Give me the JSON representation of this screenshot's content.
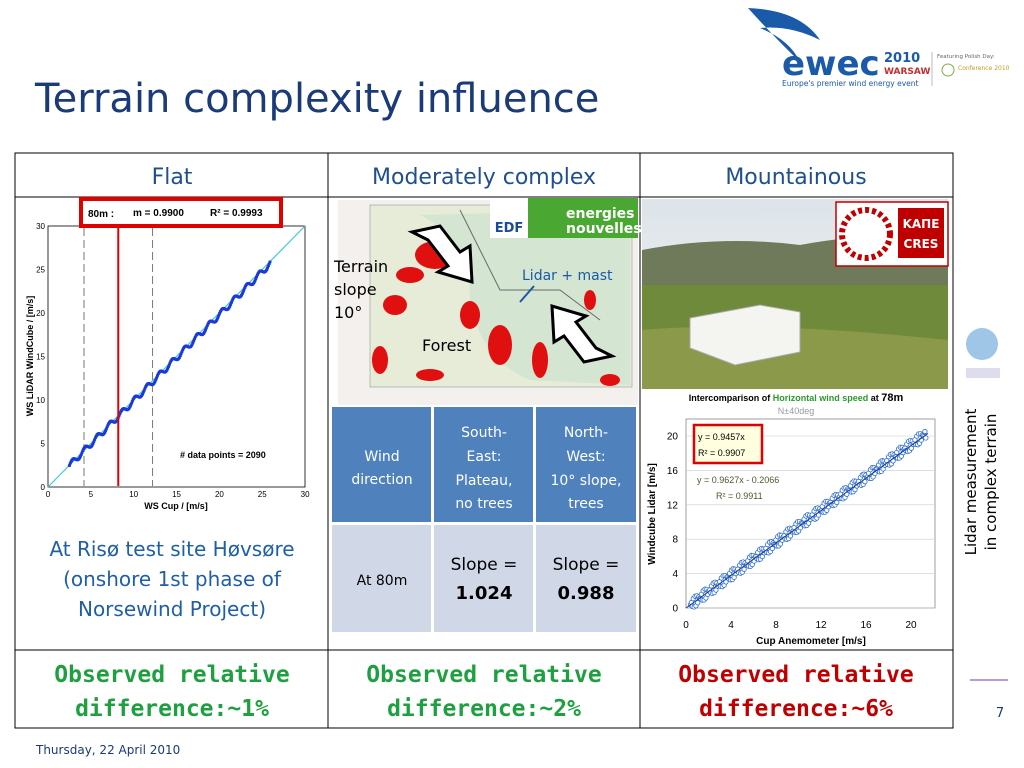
{
  "header": {
    "title": "Terrain complexity influence",
    "logo": {
      "name": "ewec",
      "year": "2010",
      "city": "WARSAW",
      "tagline": "Europe's premier wind energy event",
      "featuring": "Featuring Polish Day:",
      "conference": "Conference 2010"
    }
  },
  "table": {
    "headers": [
      "Flat",
      "Moderately complex",
      "Mountainous"
    ],
    "flat": {
      "stats": [
        "80m :",
        "m = 0.9900",
        "R² = 0.9993"
      ],
      "y_label": "WS LiDAR WindCube / [m/s]",
      "x_label": "WS Cup / [m/s]",
      "points_note": "# data points = 2090",
      "xticks": [
        0,
        5,
        10,
        15,
        20,
        25,
        30
      ],
      "yticks": [
        0,
        5,
        10,
        15,
        20,
        25,
        30
      ],
      "caption": [
        "At Risø test site Høvsøre",
        "(onshore 1st phase of",
        "Norsewind Project)"
      ]
    },
    "moderate": {
      "logos": [
        "EDF",
        "energies",
        "nouvelles"
      ],
      "annotations": {
        "slope": [
          "Terrain",
          "slope",
          "10°"
        ],
        "lidar": "Lidar + mast",
        "forest": "Forest"
      },
      "inner_table": {
        "header": [
          [
            "Wind",
            "direction"
          ],
          [
            "South-",
            "East:",
            "Plateau,",
            "no trees"
          ],
          [
            "North-",
            "West:",
            "10° slope,",
            "trees"
          ]
        ],
        "row": [
          "At 80m",
          [
            "Slope =",
            "1.024"
          ],
          [
            "Slope =",
            "0.988"
          ]
        ]
      }
    },
    "mountainous": {
      "logo": [
        "ΚΑΠΕ",
        "CRES"
      ],
      "chart_title": [
        "Intercomparison of ",
        "Horizontal wind speed",
        " at ",
        "78m"
      ],
      "subtitle": "N±40deg",
      "fit1": [
        "y = 0.9457x",
        "R² = 0.9907"
      ],
      "fit2": [
        "y = 0.9627x - 0.2066",
        "R² = 0.9911"
      ],
      "y_label": "Windcube Lidar  [m/s]",
      "x_label": "Cup Anemometer  [m/s]",
      "xticks": [
        0,
        4,
        8,
        12,
        16,
        20
      ],
      "yticks": [
        0,
        4,
        8,
        12,
        16,
        20
      ]
    },
    "footer": [
      [
        "Observed relative",
        "difference:~1%"
      ],
      [
        "Observed relative",
        "difference:~2%"
      ],
      [
        "Observed relative",
        "difference:~6%"
      ]
    ]
  },
  "side_label": [
    "Lidar measurement",
    "in complex terrain"
  ],
  "page_number": "7",
  "date": "Thursday, 22 April 2010"
}
